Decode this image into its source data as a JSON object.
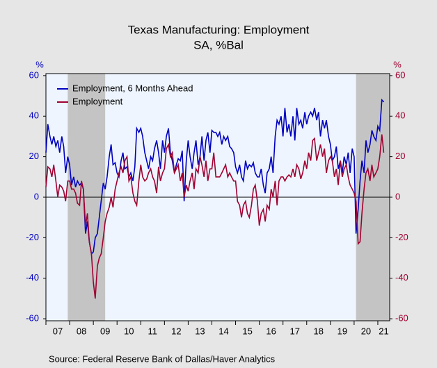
{
  "chart_data": {
    "type": "line",
    "title": "Texas Manufacturing: Employment",
    "subtitle": "SA, %Bal",
    "y_label": "%",
    "y2_label": "%",
    "source": "Source:  Federal Reserve Bank of Dallas/Haver Analytics",
    "x": [
      2007,
      2007.08,
      2007.17,
      2007.25,
      2007.33,
      2007.42,
      2007.5,
      2007.58,
      2007.67,
      2007.75,
      2007.83,
      2007.92,
      2008,
      2008.08,
      2008.17,
      2008.25,
      2008.33,
      2008.42,
      2008.5,
      2008.58,
      2008.67,
      2008.75,
      2008.83,
      2008.92,
      2009,
      2009.08,
      2009.17,
      2009.25,
      2009.33,
      2009.42,
      2009.5,
      2009.58,
      2009.67,
      2009.75,
      2009.83,
      2009.92,
      2010,
      2010.08,
      2010.17,
      2010.25,
      2010.33,
      2010.42,
      2010.5,
      2010.58,
      2010.67,
      2010.75,
      2010.83,
      2010.92,
      2011,
      2011.08,
      2011.17,
      2011.25,
      2011.33,
      2011.42,
      2011.5,
      2011.58,
      2011.67,
      2011.75,
      2011.83,
      2011.92,
      2012,
      2012.08,
      2012.17,
      2012.25,
      2012.33,
      2012.42,
      2012.5,
      2012.58,
      2012.67,
      2012.75,
      2012.83,
      2012.92,
      2013,
      2013.08,
      2013.17,
      2013.25,
      2013.33,
      2013.42,
      2013.5,
      2013.58,
      2013.67,
      2013.75,
      2013.83,
      2013.92,
      2014,
      2014.08,
      2014.17,
      2014.25,
      2014.33,
      2014.42,
      2014.5,
      2014.58,
      2014.67,
      2014.75,
      2014.83,
      2014.92,
      2015,
      2015.08,
      2015.17,
      2015.25,
      2015.33,
      2015.42,
      2015.5,
      2015.58,
      2015.67,
      2015.75,
      2015.83,
      2015.92,
      2016,
      2016.08,
      2016.17,
      2016.25,
      2016.33,
      2016.42,
      2016.5,
      2016.58,
      2016.67,
      2016.75,
      2016.83,
      2016.92,
      2017,
      2017.08,
      2017.17,
      2017.25,
      2017.33,
      2017.42,
      2017.5,
      2017.58,
      2017.67,
      2017.75,
      2017.83,
      2017.92,
      2018,
      2018.08,
      2018.17,
      2018.25,
      2018.33,
      2018.42,
      2018.5,
      2018.58,
      2018.67,
      2018.75,
      2018.83,
      2018.92,
      2019,
      2019.08,
      2019.17,
      2019.25,
      2019.33,
      2019.42,
      2019.5,
      2019.58,
      2019.67,
      2019.75,
      2019.83,
      2019.92,
      2020,
      2020.08,
      2020.17,
      2020.25,
      2020.33,
      2020.42,
      2020.5,
      2020.58,
      2020.67,
      2020.75,
      2020.83,
      2020.92,
      2021,
      2021.08,
      2021.17,
      2021.25
    ],
    "series": [
      {
        "name": "Employment, 6 Months Ahead",
        "color": "#0000c0",
        "values": [
          22,
          36,
          30,
          26,
          30,
          25,
          28,
          22,
          30,
          25,
          12,
          20,
          16,
          6,
          10,
          5,
          8,
          6,
          7,
          4,
          -18,
          -12,
          -22,
          -28,
          -27,
          -20,
          -18,
          -10,
          -2,
          7,
          4,
          10,
          20,
          26,
          16,
          17,
          12,
          10,
          18,
          22,
          14,
          15,
          10,
          12,
          8,
          15,
          34,
          32,
          34,
          30,
          22,
          18,
          14,
          20,
          18,
          24,
          28,
          22,
          14,
          28,
          22,
          30,
          34,
          22,
          18,
          12,
          16,
          19,
          18,
          23,
          -2,
          18,
          28,
          20,
          14,
          22,
          28,
          16,
          20,
          30,
          18,
          28,
          32,
          22,
          33,
          32,
          32,
          30,
          32,
          26,
          30,
          28,
          30,
          25,
          24,
          22,
          15,
          12,
          16,
          10,
          8,
          18,
          14,
          16,
          15,
          17,
          12,
          10,
          10,
          14,
          6,
          2,
          12,
          14,
          20,
          12,
          30,
          38,
          36,
          40,
          30,
          44,
          32,
          36,
          30,
          40,
          28,
          44,
          36,
          38,
          34,
          42,
          36,
          40,
          42,
          40,
          44,
          38,
          42,
          30,
          38,
          34,
          38,
          30,
          26,
          18,
          20,
          25,
          14,
          18,
          12,
          20,
          16,
          22,
          12,
          24,
          20,
          -18,
          -6,
          8,
          18,
          12,
          28,
          22,
          26,
          33,
          30,
          28,
          35,
          33,
          48,
          47
        ]
      },
      {
        "name": "Employment",
        "color": "#a00030",
        "axis": "y2",
        "values": [
          5,
          15,
          14,
          10,
          16,
          8,
          0,
          6,
          5,
          3,
          -2,
          8,
          8,
          4,
          4,
          2,
          -3,
          -4,
          8,
          4,
          -14,
          -8,
          -22,
          -28,
          -42,
          -50,
          -34,
          -30,
          -28,
          -20,
          -12,
          -8,
          -5,
          0,
          -5,
          4,
          8,
          12,
          15,
          12,
          18,
          20,
          8,
          10,
          2,
          -2,
          -4,
          8,
          16,
          10,
          8,
          9,
          12,
          14,
          10,
          8,
          2,
          15,
          8,
          12,
          14,
          24,
          26,
          20,
          22,
          12,
          14,
          16,
          8,
          12,
          0,
          6,
          3,
          8,
          12,
          4,
          14,
          12,
          20,
          16,
          10,
          18,
          8,
          14,
          14,
          22,
          10,
          10,
          10,
          12,
          14,
          16,
          10,
          12,
          10,
          8,
          8,
          -2,
          -4,
          -10,
          -4,
          -2,
          -8,
          -10,
          -4,
          4,
          6,
          -2,
          -14,
          -8,
          -6,
          -12,
          -4,
          -6,
          4,
          0,
          8,
          -4,
          8,
          10,
          10,
          8,
          10,
          11,
          10,
          14,
          10,
          16,
          14,
          9,
          12,
          18,
          14,
          22,
          18,
          28,
          29,
          18,
          22,
          26,
          20,
          24,
          12,
          18,
          20,
          18,
          10,
          14,
          6,
          18,
          10,
          14,
          16,
          10,
          6,
          4,
          2,
          -2,
          -23,
          -22,
          -8,
          4,
          12,
          14,
          8,
          16,
          10,
          12,
          14,
          20,
          31,
          22
        ]
      }
    ],
    "recessions": [
      [
        2007.92,
        2009.5
      ],
      [
        2020.08,
        2021.5
      ]
    ],
    "xlim": [
      2007,
      2021.5
    ],
    "xticks": [
      {
        "value": 2007.5,
        "label": "07"
      },
      {
        "value": 2008.5,
        "label": "08"
      },
      {
        "value": 2009.5,
        "label": "09"
      },
      {
        "value": 2010.5,
        "label": "10"
      },
      {
        "value": 2011.5,
        "label": "11"
      },
      {
        "value": 2012.5,
        "label": "12"
      },
      {
        "value": 2013.5,
        "label": "13"
      },
      {
        "value": 2014.5,
        "label": "14"
      },
      {
        "value": 2015.5,
        "label": "15"
      },
      {
        "value": 2016.5,
        "label": "16"
      },
      {
        "value": 2017.5,
        "label": "17"
      },
      {
        "value": 2018.5,
        "label": "18"
      },
      {
        "value": 2019.5,
        "label": "19"
      },
      {
        "value": 2020.5,
        "label": "20"
      },
      {
        "value": 2021.25,
        "label": "21"
      }
    ],
    "ylim": [
      -61,
      61
    ],
    "yticks": [
      -60,
      -40,
      -20,
      0,
      20,
      40,
      60
    ],
    "y2lim": [
      -61,
      61
    ],
    "y2ticks": [
      -60,
      -40,
      -20,
      0,
      20,
      40,
      60
    ],
    "legend": "upper left"
  }
}
